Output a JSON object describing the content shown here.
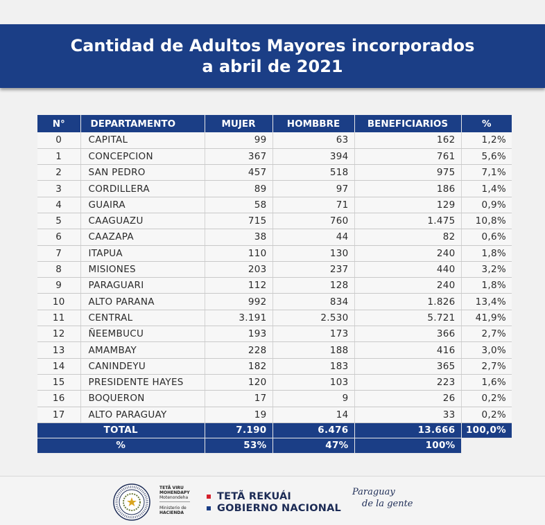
{
  "title": {
    "line1": "Cantidad de Adultos Mayores incorporados",
    "line2": "a abril de 2021"
  },
  "colors": {
    "navy": "#1b3e86",
    "red": "#d5202b",
    "blue": "#1b3e86"
  },
  "table": {
    "headers": [
      "N°",
      "DEPARTAMENTO",
      "MUJER",
      "HOMBBRE",
      "BENEFICIARIOS",
      "%"
    ],
    "rows": [
      {
        "n": "0",
        "dep": "CAPITAL",
        "mujer": "99",
        "hombre": "63",
        "benef": "162",
        "pct": "1,2%"
      },
      {
        "n": "1",
        "dep": "CONCEPCION",
        "mujer": "367",
        "hombre": "394",
        "benef": "761",
        "pct": "5,6%"
      },
      {
        "n": "2",
        "dep": "SAN PEDRO",
        "mujer": "457",
        "hombre": "518",
        "benef": "975",
        "pct": "7,1%"
      },
      {
        "n": "3",
        "dep": "CORDILLERA",
        "mujer": "89",
        "hombre": "97",
        "benef": "186",
        "pct": "1,4%"
      },
      {
        "n": "4",
        "dep": "GUAIRA",
        "mujer": "58",
        "hombre": "71",
        "benef": "129",
        "pct": "0,9%"
      },
      {
        "n": "5",
        "dep": "CAAGUAZU",
        "mujer": "715",
        "hombre": "760",
        "benef": "1.475",
        "pct": "10,8%"
      },
      {
        "n": "6",
        "dep": "CAAZAPA",
        "mujer": "38",
        "hombre": "44",
        "benef": "82",
        "pct": "0,6%"
      },
      {
        "n": "7",
        "dep": "ITAPUA",
        "mujer": "110",
        "hombre": "130",
        "benef": "240",
        "pct": "1,8%"
      },
      {
        "n": "8",
        "dep": "MISIONES",
        "mujer": "203",
        "hombre": "237",
        "benef": "440",
        "pct": "3,2%"
      },
      {
        "n": "9",
        "dep": "PARAGUARI",
        "mujer": "112",
        "hombre": "128",
        "benef": "240",
        "pct": "1,8%"
      },
      {
        "n": "10",
        "dep": "ALTO PARANA",
        "mujer": "992",
        "hombre": "834",
        "benef": "1.826",
        "pct": "13,4%"
      },
      {
        "n": "11",
        "dep": "CENTRAL",
        "mujer": "3.191",
        "hombre": "2.530",
        "benef": "5.721",
        "pct": "41,9%"
      },
      {
        "n": "12",
        "dep": "ÑEEMBUCU",
        "mujer": "193",
        "hombre": "173",
        "benef": "366",
        "pct": "2,7%"
      },
      {
        "n": "13",
        "dep": "AMAMBAY",
        "mujer": "228",
        "hombre": "188",
        "benef": "416",
        "pct": "3,0%"
      },
      {
        "n": "14",
        "dep": "CANINDEYU",
        "mujer": "182",
        "hombre": "183",
        "benef": "365",
        "pct": "2,7%"
      },
      {
        "n": "15",
        "dep": "PRESIDENTE HAYES",
        "mujer": "120",
        "hombre": "103",
        "benef": "223",
        "pct": "1,6%"
      },
      {
        "n": "16",
        "dep": "BOQUERON",
        "mujer": "17",
        "hombre": "9",
        "benef": "26",
        "pct": "0,2%"
      },
      {
        "n": "17",
        "dep": "ALTO PARAGUAY",
        "mujer": "19",
        "hombre": "14",
        "benef": "33",
        "pct": "0,2%"
      }
    ],
    "total": {
      "label": "TOTAL",
      "mujer": "7.190",
      "hombre": "6.476",
      "benef": "13.666",
      "pct": "100,0%"
    },
    "pct_row": {
      "label": "%",
      "mujer": "53%",
      "hombre": "47%",
      "benef": "100%"
    }
  },
  "footer": {
    "seal_text": "REPUBLICA DEL PARAGUAY",
    "ministry_line1": "TETÃ VIRU",
    "ministry_line2": "MOHENDAPY",
    "ministry_line3": "Motenondeha",
    "ministry_line4": "Ministerio de",
    "ministry_line5": "HACIENDA",
    "gov_line1": "TETÃ REKUÁI",
    "gov_line2": "GOBIERNO NACIONAL",
    "slogan_line1": "Paraguay",
    "slogan_line2": "de la gente"
  }
}
